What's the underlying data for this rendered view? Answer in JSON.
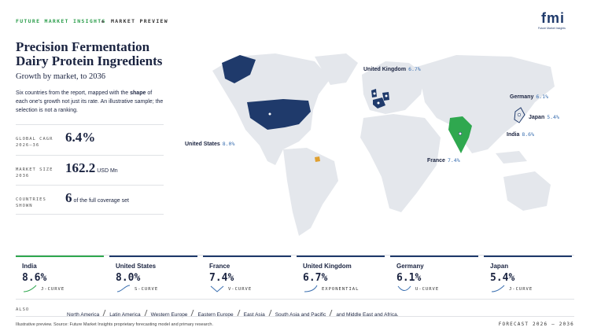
{
  "header": {
    "brand": "FUTURE MARKET INSIGHTS",
    "section": "MARKET PREVIEW"
  },
  "logo": {
    "mark": "fmi",
    "name": "Future Market Insights"
  },
  "title": "Precision Fermentation Dairy Protein Ingredients",
  "subtitle": "Growth by market, to 2036",
  "description": {
    "before": "Six countries from the report, mapped with the",
    "emphasis": "shape",
    "after": "of each one's growth not just its rate. An illustrative sample; the selection is not a ranking."
  },
  "stats": [
    {
      "label": "GLOBAL CAGR 2026–36",
      "value": "6.4%"
    },
    {
      "label": "MARKET SIZE 2036",
      "value": "162.2",
      "unit": "USD Mn"
    },
    {
      "label": "COUNTRIES SHOWN",
      "value": "6",
      "unit": "of the full coverage set"
    }
  ],
  "map_labels": [
    {
      "name": "United Kingdom",
      "value": "6.7%"
    },
    {
      "name": "Germany",
      "value": "6.1%"
    },
    {
      "name": "Japan",
      "value": "5.4%"
    },
    {
      "name": "India",
      "value": "8.6%"
    },
    {
      "name": "France",
      "value": "7.4%"
    },
    {
      "name": "United States",
      "value": "8.0%"
    }
  ],
  "cards": [
    {
      "name": "India",
      "value": "8.6%",
      "shape": "J-CURVE"
    },
    {
      "name": "United States",
      "value": "8.0%",
      "shape": "S-CURVE"
    },
    {
      "name": "France",
      "value": "7.4%",
      "shape": "V-CURVE"
    },
    {
      "name": "United Kingdom",
      "value": "6.7%",
      "shape": "EXPONENTIAL"
    },
    {
      "name": "Germany",
      "value": "6.1%",
      "shape": "U-CURVE"
    },
    {
      "name": "Japan",
      "value": "5.4%",
      "shape": "J-CURVE"
    }
  ],
  "also": {
    "label": "ALSO",
    "regions": [
      "North America",
      "Latin America",
      "Western Europe",
      "Eastern Europe",
      "East Asia",
      "South Asia and Pacific",
      "and Middle East and Africa."
    ]
  },
  "footer": {
    "source": "Illustrative preview. Source: Future Market Insights proprietary forecasting model and primary research.",
    "range": "FORECAST 2026 – 2036"
  }
}
